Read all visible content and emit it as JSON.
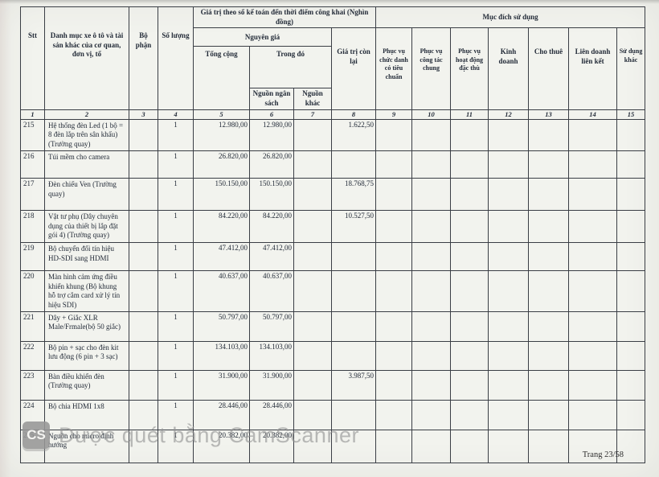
{
  "page": {
    "footer": "Trang 23/58",
    "watermark": {
      "logo": "CS",
      "text": "Được quét bằng CamScanner"
    }
  },
  "table": {
    "header": {
      "stt": "Stt",
      "danh_muc": "Danh mục xe ô tô và tài sản khác của cơ quan, đơn vị, tổ",
      "bo_phan": "Bộ phận",
      "so_luong": "Số lượng",
      "gia_tri_group": "Giá trị theo sổ kế toán đến thời điểm công khai (Nghìn đồng)",
      "nguyen_gia": "Nguyên giá",
      "tong_cong": "Tổng cộng",
      "trong_do": "Trong đó",
      "nguon_ngan_sach": "Nguồn ngân sách",
      "nguon_khac": "Nguồn khác",
      "gia_tri_con_lai": "Giá trị còn lại",
      "muc_dich_group": "Mục đích sử dụng",
      "phuc_vu_chuc_danh": "Phục vụ chức danh có tiêu chuẩn",
      "phuc_vu_cong_tac": "Phục vụ công tác chung",
      "phuc_vu_hoat_dong": "Phục vụ hoạt động đặc thù",
      "kinh_doanh": "Kinh doanh",
      "cho_thue": "Cho thuê",
      "lien_doanh": "Liên doanh liên kết",
      "su_dung_khac": "Sử dụng khác"
    },
    "column_numbers": [
      "1",
      "2",
      "3",
      "4",
      "5",
      "6",
      "7",
      "8",
      "9",
      "10",
      "11",
      "12",
      "13",
      "14",
      "15"
    ],
    "rows": [
      {
        "stt": "215",
        "description": "Hệ thống đèn Led (1 bộ = 8 đèn lắp trên sân khấu) (Trường quay)",
        "bo_phan": "",
        "so_luong": "1",
        "tong_cong": "12.980,00",
        "nguon_ngan_sach": "12.980,00",
        "nguon_khac": "",
        "gia_tri_con_lai": "1.622,50"
      },
      {
        "stt": "216",
        "description": "Túi mềm cho camera",
        "bo_phan": "",
        "so_luong": "1",
        "tong_cong": "26.820,00",
        "nguon_ngan_sach": "26.820,00",
        "nguon_khac": "",
        "gia_tri_con_lai": ""
      },
      {
        "stt": "217",
        "description": "Đèn chiếu Ven (Trường quay)",
        "bo_phan": "",
        "so_luong": "1",
        "tong_cong": "150.150,00",
        "nguon_ngan_sach": "150.150,00",
        "nguon_khac": "",
        "gia_tri_con_lai": "18.768,75"
      },
      {
        "stt": "218",
        "description": "Vật tư phụ (Dây chuyên dụng của thiết bị lắp đặt gói 4) (Trường quay)",
        "bo_phan": "",
        "so_luong": "1",
        "tong_cong": "84.220,00",
        "nguon_ngan_sach": "84.220,00",
        "nguon_khac": "",
        "gia_tri_con_lai": "10.527,50"
      },
      {
        "stt": "219",
        "description": "Bộ chuyển đổi tín hiệu HD-SDI sang HDMI",
        "bo_phan": "",
        "so_luong": "1",
        "tong_cong": "47.412,00",
        "nguon_ngan_sach": "47.412,00",
        "nguon_khac": "",
        "gia_tri_con_lai": ""
      },
      {
        "stt": "220",
        "description": "Màn hình cảm ứng điều khiển khung (Bộ khung hỗ trợ cắm card xử lý tín hiệu SDI)",
        "bo_phan": "",
        "so_luong": "1",
        "tong_cong": "40.637,00",
        "nguon_ngan_sach": "40.637,00",
        "nguon_khac": "",
        "gia_tri_con_lai": ""
      },
      {
        "stt": "221",
        "description": "Dây + Giắc XLR Male/Frmale(bộ 50 giắc)",
        "bo_phan": "",
        "so_luong": "1",
        "tong_cong": "50.797,00",
        "nguon_ngan_sach": "50.797,00",
        "nguon_khac": "",
        "gia_tri_con_lai": ""
      },
      {
        "stt": "222",
        "description": "Bộ pin + sạc cho đèn kit lưu động (6 pin + 3 sạc)",
        "bo_phan": "",
        "so_luong": "1",
        "tong_cong": "134.103,00",
        "nguon_ngan_sach": "134.103,00",
        "nguon_khac": "",
        "gia_tri_con_lai": ""
      },
      {
        "stt": "223",
        "description": "Bàn điều khiển đèn (Trường quay)",
        "bo_phan": "",
        "so_luong": "1",
        "tong_cong": "31.900,00",
        "nguon_ngan_sach": "31.900,00",
        "nguon_khac": "",
        "gia_tri_con_lai": "3.987,50"
      },
      {
        "stt": "224",
        "description": "Bộ chia HDMI 1x8",
        "bo_phan": "",
        "so_luong": "1",
        "tong_cong": "28.446,00",
        "nguon_ngan_sach": "28.446,00",
        "nguon_khac": "",
        "gia_tri_con_lai": ""
      },
      {
        "stt": "225",
        "description": "Nguồn cho micro định hướng",
        "bo_phan": "",
        "so_luong": "1",
        "tong_cong": "20.382,00",
        "nguon_ngan_sach": "20.382,00",
        "nguon_khac": "",
        "gia_tri_con_lai": ""
      }
    ]
  }
}
